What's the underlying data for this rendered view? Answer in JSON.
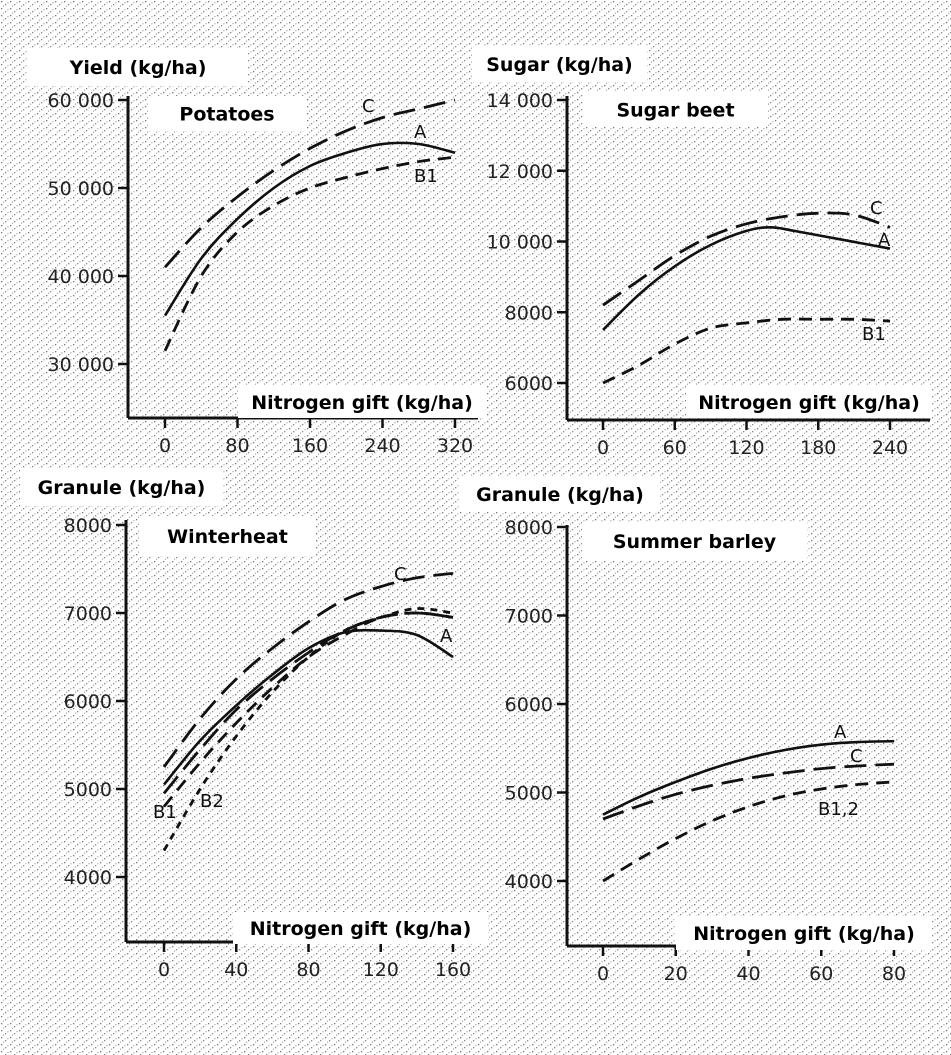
{
  "chart_data": [
    {
      "type": "line",
      "title": "Potatoes",
      "ylabel": "Yield (kg/ha)",
      "xlabel": "Nitrogen gift (kg/ha)",
      "xlim": [
        0,
        320
      ],
      "ylim": [
        30000,
        60000
      ],
      "xticks": [
        0,
        80,
        160,
        240,
        320
      ],
      "xtick_labels": [
        "0",
        "80",
        "160",
        "240",
        "320"
      ],
      "yticks": [
        30000,
        40000,
        50000,
        60000
      ],
      "ytick_labels": [
        "30 000",
        "40 000",
        "50 000",
        "60 000"
      ],
      "series": [
        {
          "name": "C",
          "dash": "long",
          "x": [
            0,
            40,
            80,
            120,
            160,
            200,
            240,
            280,
            320
          ],
          "y": [
            41000,
            45500,
            49000,
            52000,
            54500,
            56500,
            58000,
            59000,
            60000
          ]
        },
        {
          "name": "A",
          "dash": "solid",
          "x": [
            0,
            40,
            80,
            120,
            160,
            200,
            240,
            280,
            320
          ],
          "y": [
            35500,
            42000,
            46500,
            50000,
            52500,
            54000,
            55000,
            55000,
            54000
          ]
        },
        {
          "name": "B1",
          "dash": "medium",
          "x": [
            0,
            40,
            80,
            120,
            160,
            200,
            240,
            280,
            320
          ],
          "y": [
            31500,
            40000,
            45000,
            48000,
            50000,
            51200,
            52200,
            53000,
            53500
          ]
        }
      ]
    },
    {
      "type": "line",
      "title": "Sugar beet",
      "ylabel": "Sugar (kg/ha)",
      "xlabel": "Nitrogen gift (kg/ha)",
      "xlim": [
        0,
        240
      ],
      "ylim": [
        6000,
        14000
      ],
      "xticks": [
        0,
        60,
        120,
        180,
        240
      ],
      "xtick_labels": [
        "0",
        "60",
        "120",
        "180",
        "240"
      ],
      "yticks": [
        6000,
        8000,
        10000,
        12000,
        14000
      ],
      "ytick_labels": [
        "6000",
        "8000",
        "10 000",
        "12 000",
        "14 000"
      ],
      "series": [
        {
          "name": "C",
          "dash": "long",
          "x": [
            0,
            30,
            60,
            90,
            120,
            150,
            180,
            210,
            240
          ],
          "y": [
            8200,
            8900,
            9600,
            10150,
            10500,
            10700,
            10800,
            10750,
            10400
          ]
        },
        {
          "name": "A",
          "dash": "solid",
          "x": [
            0,
            30,
            60,
            90,
            120,
            140,
            160,
            200,
            240
          ],
          "y": [
            7500,
            8500,
            9300,
            9900,
            10300,
            10400,
            10300,
            10050,
            9800
          ]
        },
        {
          "name": "B1",
          "dash": "medium",
          "x": [
            0,
            30,
            60,
            90,
            120,
            150,
            180,
            210,
            240
          ],
          "y": [
            6000,
            6500,
            7100,
            7550,
            7700,
            7800,
            7800,
            7800,
            7750
          ]
        }
      ]
    },
    {
      "type": "line",
      "title": "Winterheat",
      "ylabel": "Granule (kg/ha)",
      "xlabel": "Nitrogen gift (kg/ha)",
      "xlim": [
        0,
        160
      ],
      "ylim": [
        4000,
        8000
      ],
      "xticks": [
        0,
        40,
        80,
        120,
        160
      ],
      "xtick_labels": [
        "0",
        "40",
        "80",
        "120",
        "160"
      ],
      "yticks": [
        4000,
        5000,
        6000,
        7000,
        8000
      ],
      "ytick_labels": [
        "4000",
        "5000",
        "6000",
        "7000",
        "8000"
      ],
      "series": [
        {
          "name": "C",
          "dash": "long",
          "x": [
            0,
            20,
            40,
            60,
            80,
            100,
            120,
            140,
            160
          ],
          "y": [
            5250,
            5800,
            6250,
            6600,
            6900,
            7150,
            7300,
            7400,
            7450
          ]
        },
        {
          "name": "A",
          "dash": "solid",
          "x": [
            0,
            20,
            40,
            60,
            80,
            100,
            120,
            140,
            160
          ],
          "y": [
            5050,
            5550,
            5950,
            6300,
            6600,
            6780,
            6800,
            6750,
            6500
          ]
        },
        {
          "name": "",
          "dash": "long",
          "x": [
            0,
            20,
            40,
            60,
            80,
            100,
            120,
            140,
            160
          ],
          "y": [
            4950,
            5450,
            5900,
            6250,
            6550,
            6800,
            6950,
            7000,
            6950
          ]
        },
        {
          "name": "B1",
          "dash": "medium",
          "x": [
            0,
            20,
            40,
            60,
            80,
            100,
            120,
            140,
            160
          ],
          "y": [
            4800,
            5300,
            5750,
            6150,
            6500,
            6750,
            6950,
            7000,
            6950
          ]
        },
        {
          "name": "B2",
          "dash": "short",
          "x": [
            0,
            20,
            40,
            60,
            80,
            100,
            120,
            140,
            160
          ],
          "y": [
            4300,
            5000,
            5600,
            6100,
            6500,
            6800,
            6950,
            7050,
            7000
          ]
        }
      ]
    },
    {
      "type": "line",
      "title": "Summer barley",
      "ylabel": "Granule (kg/ha)",
      "xlabel": "Nitrogen gift (kg/ha)",
      "xlim": [
        0,
        80
      ],
      "ylim": [
        4000,
        8000
      ],
      "xticks": [
        0,
        20,
        40,
        60,
        80
      ],
      "xtick_labels": [
        "0",
        "20",
        "40",
        "60",
        "80"
      ],
      "yticks": [
        4000,
        5000,
        6000,
        7000,
        8000
      ],
      "ytick_labels": [
        "4000",
        "5000",
        "6000",
        "7000",
        "8000"
      ],
      "series": [
        {
          "name": "A",
          "dash": "solid",
          "x": [
            0,
            10,
            20,
            30,
            40,
            50,
            60,
            70,
            80
          ],
          "y": [
            4750,
            4950,
            5120,
            5270,
            5390,
            5480,
            5540,
            5570,
            5580
          ]
        },
        {
          "name": "C",
          "dash": "long",
          "x": [
            0,
            10,
            20,
            30,
            40,
            50,
            60,
            70,
            80
          ],
          "y": [
            4700,
            4850,
            4980,
            5080,
            5160,
            5220,
            5270,
            5300,
            5320
          ]
        },
        {
          "name": "B1,2",
          "dash": "medium",
          "x": [
            0,
            10,
            20,
            30,
            40,
            50,
            60,
            70,
            80
          ],
          "y": [
            4000,
            4250,
            4480,
            4680,
            4840,
            4960,
            5040,
            5090,
            5120
          ]
        }
      ]
    }
  ]
}
